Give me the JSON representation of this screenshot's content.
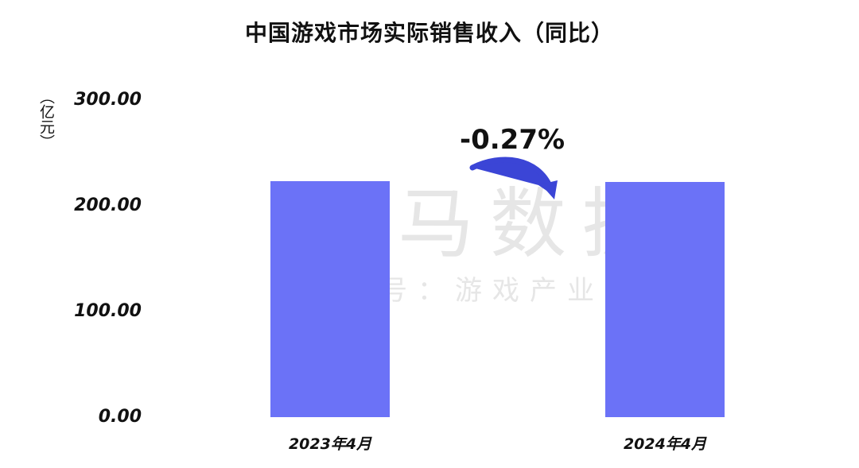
{
  "chart_data": {
    "type": "bar",
    "title": "中国游戏市场实际销售收入（同比）",
    "ylabel": "（亿元）",
    "ylim": [
      0,
      300
    ],
    "yticks": [
      "300.00",
      "200.00",
      "100.00",
      "0.00"
    ],
    "yticks_values": [
      300,
      200,
      100,
      0
    ],
    "categories": [
      "2023年4月",
      "2024年4月"
    ],
    "values": [
      223.0,
      222.4
    ],
    "annotation": "-0.27%",
    "bar_color": "#6b72f7",
    "arrow_color": "#3b45d6",
    "grid": false,
    "legend": "none"
  },
  "watermark": {
    "main": "伽马数据",
    "sub": "微信号：游戏产业报告"
  }
}
